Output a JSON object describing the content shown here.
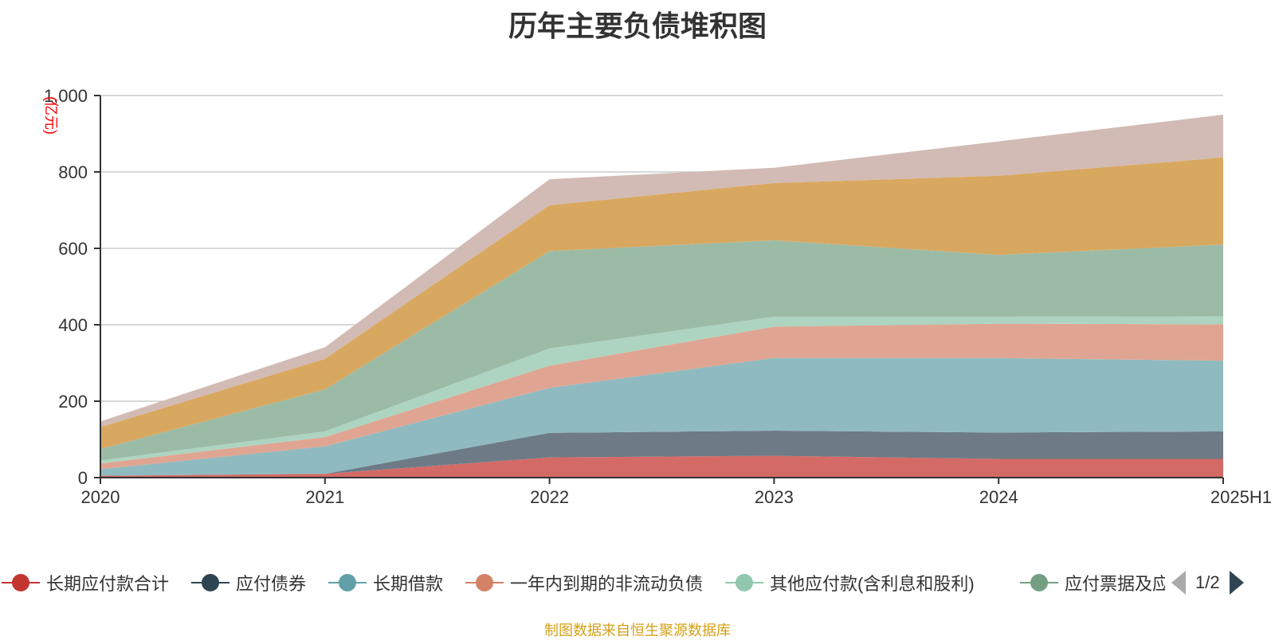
{
  "chart_data": {
    "type": "area",
    "title": "历年主要负债堆积图",
    "ylabel": "(亿元)",
    "xlabel": "",
    "stacked": true,
    "categories": [
      "2020",
      "2021",
      "2022",
      "2023",
      "2024",
      "2025H1"
    ],
    "ylim": [
      0,
      1000
    ],
    "yticks": [
      "0",
      "200",
      "400",
      "600",
      "800",
      "1,000"
    ],
    "grid": true,
    "legend_position": "bottom",
    "series": [
      {
        "name": "长期应付款合计",
        "color": "#c23531",
        "fill": "#d46a66",
        "values": [
          5,
          10,
          53,
          57,
          49,
          49
        ]
      },
      {
        "name": "应付债券",
        "color": "#2f4554",
        "fill": "#6e7b87",
        "values": [
          0,
          0,
          64,
          66,
          69,
          72
        ]
      },
      {
        "name": "长期借款",
        "color": "#61a0a8",
        "fill": "#8fbbc0",
        "values": [
          17,
          72,
          118,
          190,
          195,
          185
        ]
      },
      {
        "name": "一年内到期的非流动负债",
        "color": "#d48265",
        "fill": "#e0a592",
        "values": [
          15,
          24,
          58,
          82,
          90,
          95
        ]
      },
      {
        "name": "其他应付款(含利息和股利)",
        "color": "#91c7ae",
        "fill": "#add4c0",
        "values": [
          8,
          15,
          45,
          26,
          18,
          21
        ]
      },
      {
        "name": "应付票据及应付账款",
        "color": "#749f83",
        "fill": "#9cbba7",
        "values": [
          30,
          110,
          255,
          200,
          162,
          188
        ]
      },
      {
        "name": "",
        "color": "#ca8622",
        "fill": "#d9a860",
        "values": [
          57,
          80,
          120,
          150,
          207,
          228
        ]
      },
      {
        "name": "",
        "color": "#bda29a",
        "fill": "#d2bbb5",
        "values": [
          15,
          30,
          68,
          40,
          90,
          112
        ]
      }
    ]
  },
  "legend": {
    "page_indicator": "1/2"
  },
  "source_note": "制图数据来自恒生聚源数据库"
}
